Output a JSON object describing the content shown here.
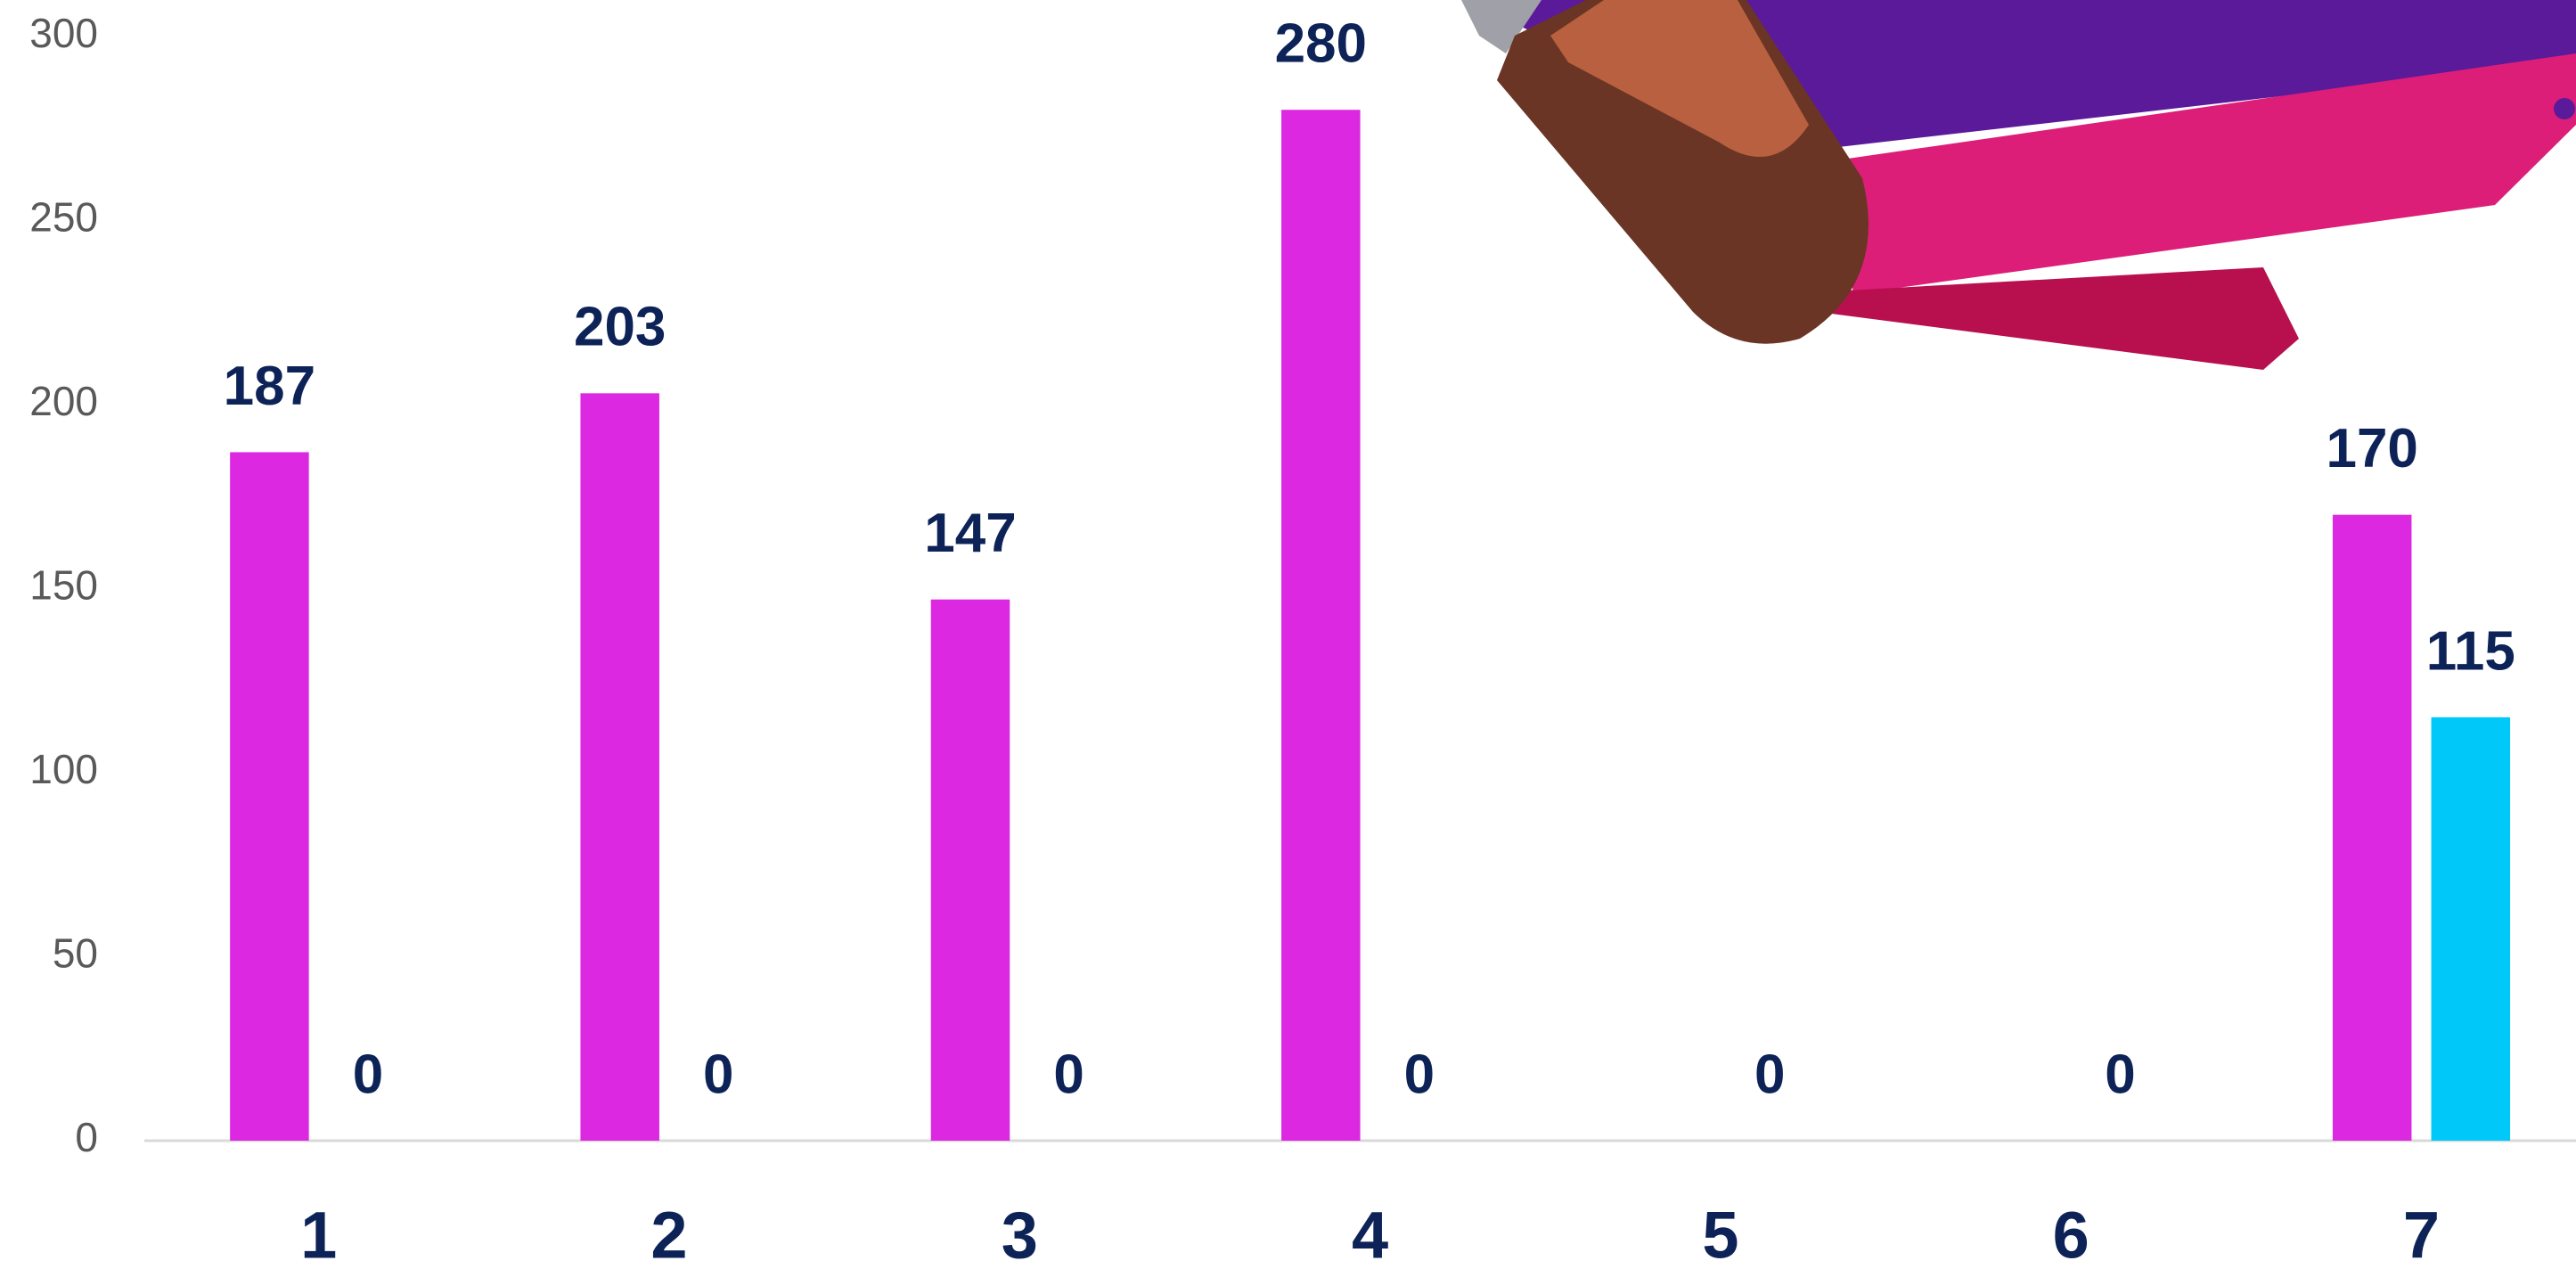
{
  "chart_data": {
    "type": "bar",
    "categories": [
      "1",
      "2",
      "3",
      "4",
      "5",
      "6",
      "7"
    ],
    "series": [
      {
        "color": "#dc28e0",
        "values": [
          187,
          203,
          147,
          280,
          null,
          null,
          170
        ]
      },
      {
        "color": "#00c8f8",
        "values": [
          0,
          0,
          0,
          0,
          0,
          0,
          115
        ]
      }
    ],
    "ylim": [
      0,
      300
    ],
    "yticks": [
      0,
      50,
      100,
      150,
      200,
      250,
      300
    ],
    "grid": false
  }
}
